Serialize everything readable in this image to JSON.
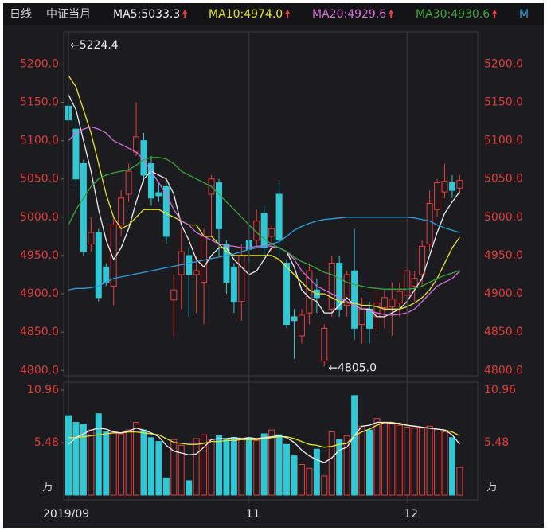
{
  "chart_data": [
    {
      "type": "candlestick",
      "period": "日线",
      "instrument": "中证当月",
      "up_color": "#ef3b3b",
      "down_color": "#2fc8d4",
      "open": [
        5145,
        5115,
        5070,
        4965,
        4980,
        4935,
        4910,
        4990,
        5030,
        5085,
        5100,
        5070,
        5032,
        5040,
        4892,
        4925,
        4950,
        4925,
        4915,
        5030,
        5045,
        4965,
        4935,
        4890,
        4970,
        4970,
        5005,
        4975,
        5030,
        4940,
        4870,
        4845,
        4875,
        4905,
        4812,
        4880,
        4940,
        4885,
        4930,
        4860,
        4880,
        4870,
        4882,
        4883,
        4888,
        4898,
        4910,
        4925,
        4965,
        5010,
        5033,
        5045,
        5038
      ],
      "high": [
        5224.4,
        5130,
        5075,
        5000,
        4985,
        4940,
        5000,
        5035,
        5070,
        5150,
        5110,
        5080,
        5045,
        5045,
        4925,
        4985,
        4960,
        4950,
        4985,
        5055,
        5050,
        4970,
        4940,
        4965,
        4990,
        5010,
        5015,
        4990,
        5045,
        4945,
        4880,
        4880,
        4940,
        4920,
        4860,
        4950,
        4950,
        4930,
        4985,
        4895,
        4890,
        4905,
        4905,
        4915,
        4915,
        4935,
        4930,
        4970,
        5035,
        5050,
        5070,
        5055,
        5055
      ],
      "low": [
        5115,
        5040,
        4950,
        4955,
        4890,
        4910,
        4885,
        4975,
        5020,
        5080,
        5045,
        5015,
        5020,
        4965,
        4845,
        4880,
        4870,
        4875,
        4860,
        4975,
        4950,
        4900,
        4875,
        4865,
        4940,
        4960,
        4950,
        4955,
        4950,
        4855,
        4815,
        4835,
        4860,
        4875,
        4805.0,
        4870,
        4870,
        4870,
        4840,
        4835,
        4835,
        4850,
        4855,
        4845,
        4870,
        4875,
        4890,
        4910,
        4955,
        5000,
        5025,
        5025,
        5030
      ],
      "close": [
        5127,
        5050,
        4955,
        4980,
        4895,
        4915,
        4990,
        5025,
        5060,
        5105,
        5055,
        5025,
        5028,
        4975,
        4905,
        4955,
        4925,
        4930,
        4975,
        5050,
        4985,
        4915,
        4890,
        4950,
        4958,
        4995,
        4960,
        4985,
        4970,
        4860,
        4865,
        4872,
        4930,
        4895,
        4855,
        4940,
        4880,
        4925,
        4855,
        4880,
        4855,
        4888,
        4895,
        4893,
        4903,
        4930,
        4920,
        4962,
        5018,
        5045,
        5047,
        5035,
        5048
      ],
      "ylim": [
        4793,
        5242
      ],
      "yticks": [
        {
          "value": 4800,
          "label": "4800.0"
        },
        {
          "value": 4850,
          "label": "4850.0"
        },
        {
          "value": 4900,
          "label": "4900.0"
        },
        {
          "value": 4950,
          "label": "4950.0"
        },
        {
          "value": 5000,
          "label": "5000.0"
        },
        {
          "value": 5050,
          "label": "5050.0"
        },
        {
          "value": 5100,
          "label": "5100.0"
        },
        {
          "value": 5150,
          "label": "5150.0"
        },
        {
          "value": 5200,
          "label": "5200.0"
        }
      ],
      "max_label": "←5224.4",
      "min_label": "←4805.0",
      "series": [
        {
          "name": "MA5:5033.3",
          "color": "#eeeeee",
          "values": [
            5160,
            5140,
            5100,
            5060,
            5010,
            4970,
            4945,
            4960,
            4985,
            5020,
            5050,
            5060,
            5055,
            5050,
            5030,
            4990,
            4970,
            4945,
            4935,
            4950,
            4960,
            4960,
            4945,
            4935,
            4925,
            4930,
            4945,
            4960,
            4960,
            4955,
            4935,
            4905,
            4895,
            4890,
            4875,
            4875,
            4885,
            4895,
            4885,
            4880,
            4880,
            4870,
            4870,
            4875,
            4880,
            4890,
            4905,
            4920,
            4950,
            4980,
            5005,
            5020,
            5033.3
          ]
        },
        {
          "name": "MA10:4974.0",
          "color": "#e6e62e",
          "values": [
            5185,
            5170,
            5140,
            5110,
            5070,
            5030,
            5000,
            4985,
            4990,
            5000,
            5010,
            5010,
            5010,
            5005,
            5000,
            4995,
            4990,
            4990,
            4975,
            4975,
            4965,
            4955,
            4950,
            4950,
            4950,
            4950,
            4950,
            4950,
            4945,
            4935,
            4925,
            4915,
            4905,
            4900,
            4900,
            4895,
            4890,
            4888,
            4888,
            4885,
            4885,
            4883,
            4880,
            4880,
            4880,
            4883,
            4888,
            4895,
            4905,
            4920,
            4940,
            4960,
            4974.0
          ]
        },
        {
          "name": "MA20:4929.6",
          "color": "#d46ed8",
          "values": [
            5100,
            5110,
            5115,
            5118,
            5115,
            5110,
            5100,
            5095,
            5090,
            5085,
            5075,
            5060,
            5045,
            5030,
            5010,
            4995,
            4990,
            4980,
            4975,
            4970,
            4965,
            4963,
            4962,
            4960,
            4960,
            4962,
            4963,
            4962,
            4960,
            4955,
            4945,
            4930,
            4920,
            4910,
            4905,
            4900,
            4895,
            4890,
            4885,
            4880,
            4878,
            4875,
            4873,
            4872,
            4873,
            4875,
            4880,
            4890,
            4900,
            4910,
            4915,
            4920,
            4929.6
          ]
        },
        {
          "name": "MA30:4930.6",
          "color": "#3aa53a",
          "values": [
            4990,
            5010,
            5025,
            5040,
            5050,
            5055,
            5058,
            5060,
            5062,
            5068,
            5075,
            5078,
            5078,
            5076,
            5070,
            5060,
            5055,
            5050,
            5045,
            5040,
            5030,
            5020,
            5010,
            5000,
            4990,
            4980,
            4972,
            4965,
            4960,
            4955,
            4948,
            4942,
            4938,
            4933,
            4928,
            4925,
            4920,
            4915,
            4912,
            4910,
            4908,
            4907,
            4906,
            4906,
            4906,
            4906,
            4907,
            4910,
            4915,
            4920,
            4924,
            4927,
            4930.6
          ]
        },
        {
          "name": "M",
          "color": "#2aa0e0",
          "values": [
            4905,
            4907,
            4907,
            4908,
            4910,
            4915,
            4920,
            4922,
            4924,
            4926,
            4928,
            4930,
            4932,
            4934,
            4936,
            4938,
            4940,
            4942,
            4944,
            4946,
            4948,
            4950,
            4952,
            4955,
            4958,
            4960,
            4962,
            4965,
            4968,
            4975,
            4983,
            4988,
            4992,
            4995,
            4997,
            4998,
            4999,
            5000,
            5000,
            5000,
            5000,
            5000,
            5000,
            5000,
            5000,
            5000,
            4999,
            4997,
            4995,
            4990,
            4986,
            4983,
            4980
          ]
        }
      ]
    },
    {
      "type": "bar",
      "unit": "万",
      "categories": [
        "2019/09",
        null,
        null,
        null,
        null,
        null,
        null,
        null,
        null,
        null,
        null,
        null,
        null,
        null,
        null,
        null,
        null,
        null,
        null,
        null,
        null,
        null,
        null,
        null,
        "11",
        null,
        null,
        null,
        null,
        null,
        null,
        null,
        null,
        null,
        null,
        null,
        null,
        null,
        null,
        null,
        null,
        null,
        null,
        null,
        null,
        "12",
        null,
        null,
        null,
        null,
        null,
        null,
        null
      ],
      "values": [
        8.3,
        7.6,
        7.4,
        6.8,
        8.5,
        6.6,
        6.6,
        6.4,
        6.8,
        7.6,
        6.8,
        6.0,
        5.6,
        1.8,
        5.8,
        5.2,
        1.5,
        5.9,
        6.3,
        5.8,
        6.2,
        5.8,
        6.0,
        5.8,
        6.0,
        5.7,
        6.4,
        6.8,
        6.3,
        5.3,
        4.1,
        3.2,
        2.8,
        4.8,
        2.0,
        6.6,
        5.8,
        6.2,
        10.4,
        7.2,
        6.8,
        8.0,
        7.5,
        7.6,
        7.3,
        7.1,
        7.0,
        7.0,
        7.2,
        6.9,
        6.6,
        6.0,
        2.9
      ],
      "ylim": [
        -0.5,
        11.8
      ],
      "yticks": [
        10.96,
        5.48
      ],
      "series": [
        {
          "color": "#e6e62e",
          "values": [
            6.0,
            6.0,
            6.1,
            6.2,
            6.3,
            6.4,
            6.5,
            6.5,
            6.6,
            6.6,
            6.5,
            6.4,
            6.3,
            5.9,
            5.5,
            5.4,
            5.3,
            5.3,
            5.4,
            5.6,
            5.6,
            5.7,
            5.7,
            5.8,
            5.8,
            5.8,
            5.9,
            6.0,
            6.1,
            6.1,
            5.9,
            5.6,
            5.3,
            5.2,
            5.0,
            5.1,
            5.3,
            5.4,
            6.2,
            6.6,
            6.9,
            7.3,
            7.6,
            7.6,
            7.4,
            7.3,
            7.2,
            7.1,
            7.0,
            6.9,
            6.8,
            6.6,
            6.2
          ]
        },
        {
          "color": "#eeeeee",
          "values": [
            5.3,
            6.0,
            6.4,
            6.8,
            7.0,
            6.9,
            6.6,
            6.5,
            6.7,
            7.0,
            6.8,
            6.5,
            6.1,
            5.2,
            4.6,
            4.4,
            4.2,
            4.3,
            5.0,
            5.8,
            5.9,
            5.9,
            6.0,
            5.9,
            6.0,
            5.9,
            6.0,
            6.1,
            6.2,
            6.0,
            5.5,
            4.7,
            4.1,
            3.7,
            3.4,
            3.9,
            4.7,
            5.0,
            6.2,
            7.2,
            7.3,
            7.6,
            7.6,
            7.5,
            7.5,
            7.3,
            7.2,
            7.1,
            7.0,
            6.9,
            6.8,
            6.3,
            5.3
          ]
        }
      ]
    }
  ]
}
